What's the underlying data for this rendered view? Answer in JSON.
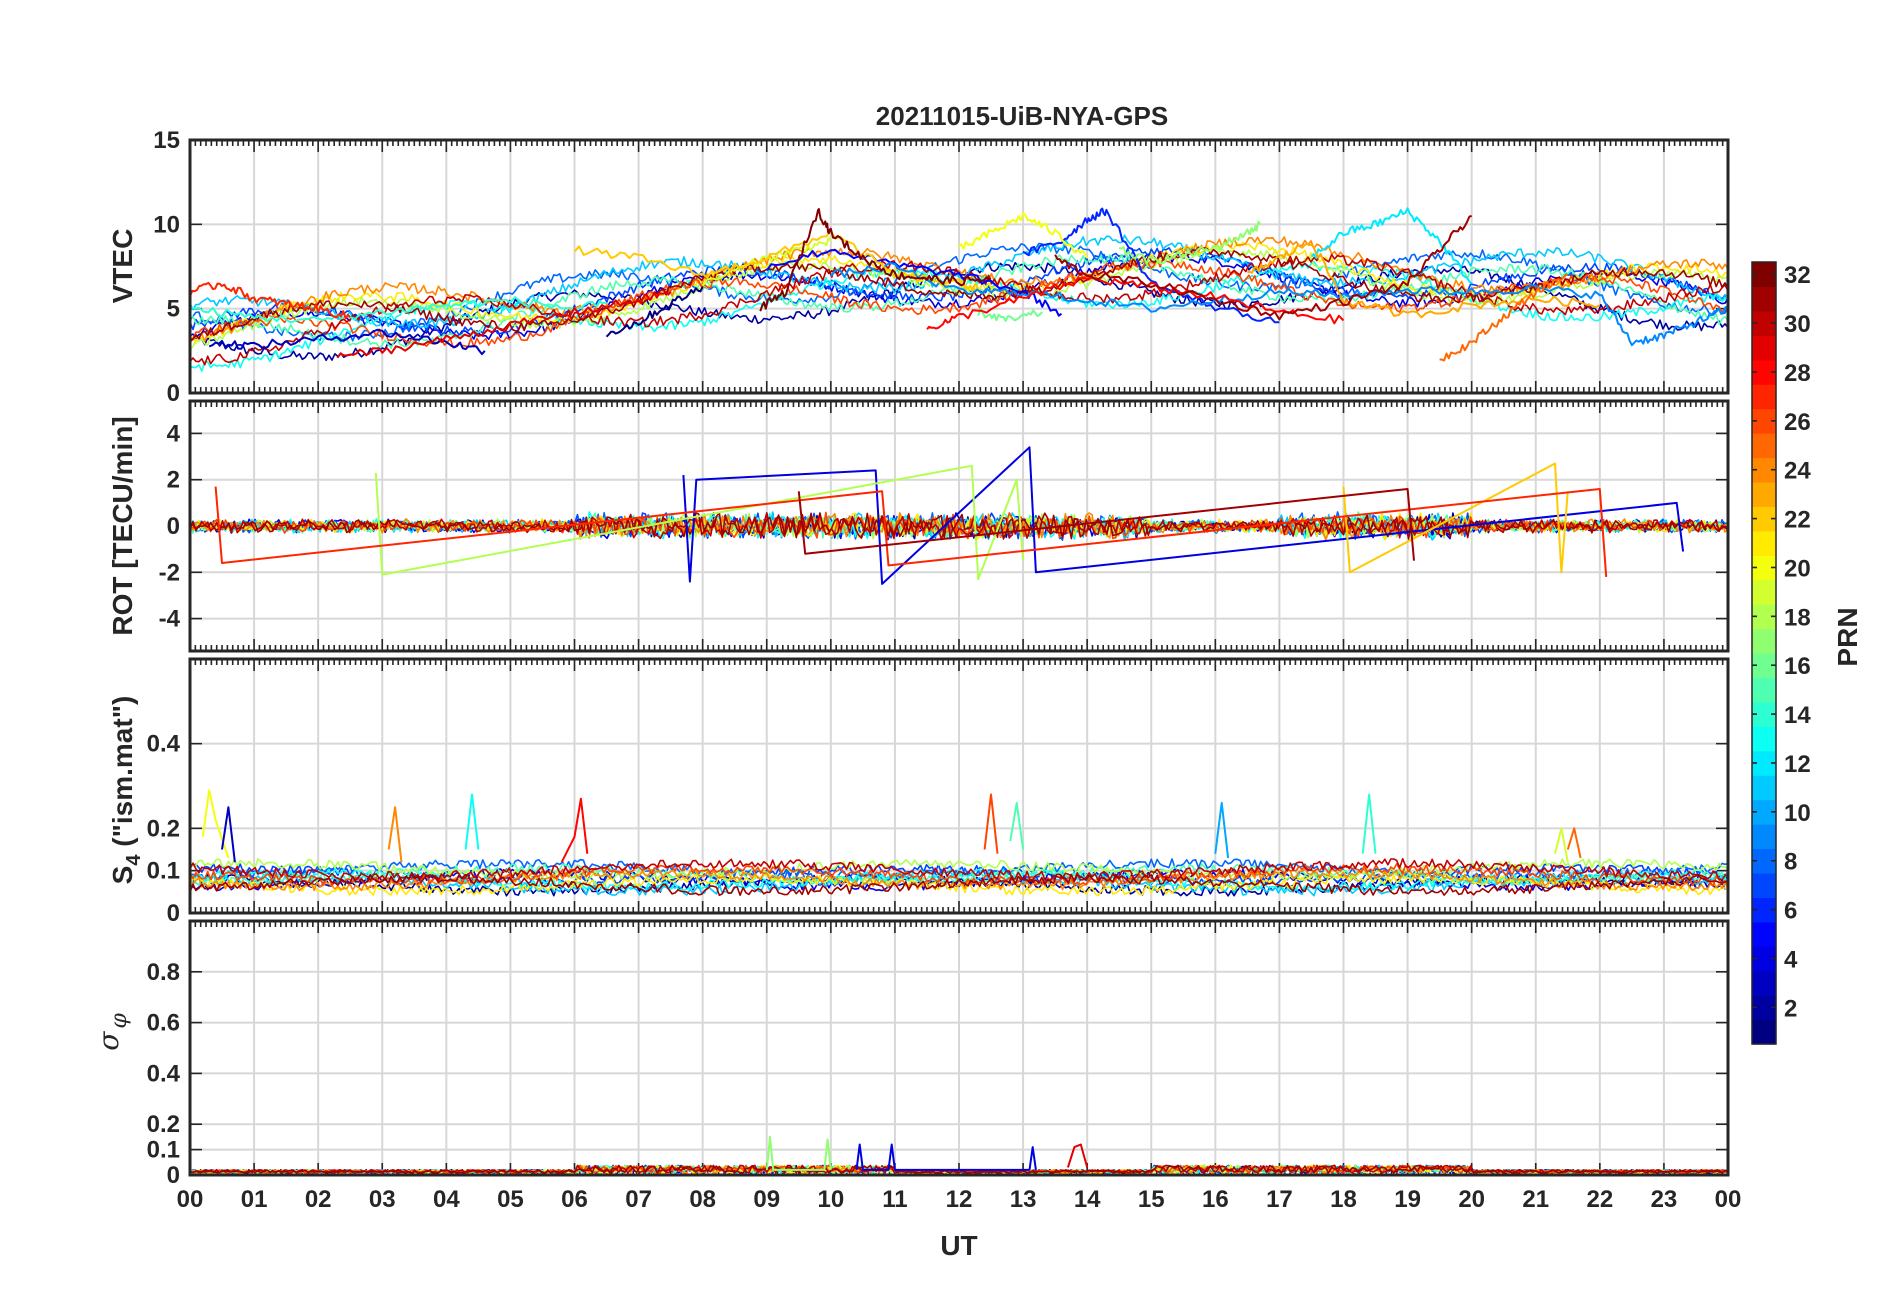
{
  "chart_data": [
    {
      "type": "line",
      "title": "20211015-UiB-NYA-GPS",
      "panel": "vtec",
      "ylabel": "VTEC",
      "xlabel": "",
      "ylim": [
        0,
        15
      ],
      "yticks": [
        0,
        5,
        10,
        15
      ],
      "ytick_labels": [
        "0",
        "5",
        "10",
        "15"
      ],
      "grid": true,
      "series": [
        {
          "name": "PRN 1",
          "prn": 1,
          "x": [
            6.5,
            7.0,
            7.5,
            8.0
          ],
          "values": [
            3.5,
            4.2,
            5.3,
            6.3
          ]
        },
        {
          "name": "PRN 3",
          "prn": 3,
          "x": [
            0.3,
            1.0,
            2.0,
            3.0,
            4.0,
            4.6
          ],
          "values": [
            3.0,
            2.8,
            3.2,
            3.6,
            3.0,
            2.5
          ]
        },
        {
          "name": "PRN 5",
          "prn": 5,
          "x": [
            9.0,
            10.0,
            11.0,
            12.0,
            13.0,
            13.6
          ],
          "values": [
            7.5,
            8.5,
            7.6,
            7.0,
            6.0,
            4.7
          ]
        },
        {
          "name": "PRN 6",
          "prn": 6,
          "x": [
            13.0,
            13.6,
            14.0,
            14.3,
            15.0,
            16.0,
            17.0
          ],
          "values": [
            8.2,
            9.0,
            10.3,
            10.8,
            6.5,
            5.1,
            4.2
          ]
        },
        {
          "name": "PRN 9",
          "prn": 9,
          "x": [
            10.0,
            11.0,
            12.0,
            13.0,
            14.0,
            15.0,
            16.0,
            17.0,
            18.0,
            19.0,
            20.0,
            21.0,
            22.0,
            22.5,
            23.0,
            23.5,
            24.0
          ],
          "values": [
            7.0,
            7.5,
            6.0,
            6.0,
            5.5,
            5.0,
            5.5,
            6.0,
            5.8,
            6.1,
            6.0,
            6.2,
            5.8,
            3.0,
            3.4,
            4.2,
            5.0
          ]
        },
        {
          "name": "PRN 12",
          "prn": 12,
          "x": [
            17.5,
            18.0,
            18.5,
            19.0,
            19.5,
            20.0
          ],
          "values": [
            8.0,
            9.5,
            10.0,
            10.8,
            9.0,
            6.5
          ]
        },
        {
          "name": "PRN 14",
          "prn": 14,
          "x": [
            0.0,
            1.0,
            2.0,
            3.0,
            4.0,
            5.0,
            6.0,
            6.5
          ],
          "values": [
            5.0,
            4.5,
            4.3,
            4.8,
            5.2,
            5.5,
            5.0,
            5.3
          ]
        },
        {
          "name": "PRN 16",
          "prn": 16,
          "x": [
            12.3,
            12.8,
            13.3
          ],
          "values": [
            4.8,
            4.3,
            4.8
          ]
        },
        {
          "name": "PRN 17",
          "prn": 17,
          "x": [
            14.5,
            15.0,
            15.5,
            16.0,
            16.5,
            16.7
          ],
          "values": [
            8.5,
            7.8,
            8.2,
            8.6,
            9.5,
            10.0
          ]
        },
        {
          "name": "PRN 19",
          "prn": 19,
          "x": [
            8.0,
            9.0,
            9.5,
            10.0
          ],
          "values": [
            6.5,
            8.0,
            8.5,
            9.0
          ]
        },
        {
          "name": "PRN 20",
          "prn": 20,
          "x": [
            12.0,
            12.5,
            13.0,
            13.5,
            14.0
          ],
          "values": [
            8.5,
            9.5,
            10.5,
            9.5,
            8.0
          ]
        },
        {
          "name": "PRN 22",
          "prn": 22,
          "x": [
            6.0,
            7.0,
            8.0,
            9.0,
            10.0,
            11.0,
            12.0,
            12.3
          ],
          "values": [
            8.5,
            8.0,
            7.0,
            8.0,
            9.5,
            7.0,
            6.5,
            6.2
          ]
        },
        {
          "name": "PRN 23",
          "prn": 23,
          "x": [
            16.5,
            17.0,
            17.5,
            18.0,
            19.0,
            20.0,
            21.0,
            22.0
          ],
          "values": [
            7.0,
            8.0,
            9.0,
            5.5,
            4.6,
            5.2,
            5.6,
            5.2
          ]
        },
        {
          "name": "PRN 25",
          "prn": 25,
          "x": [
            19.5,
            20.0,
            20.5,
            21.0,
            21.5
          ],
          "values": [
            2.0,
            3.0,
            4.5,
            6.0,
            7.0
          ]
        },
        {
          "name": "PRN 27",
          "prn": 27,
          "x": [
            0.0,
            0.5,
            1.0,
            1.5,
            2.0,
            2.5
          ],
          "values": [
            6.0,
            6.5,
            5.6,
            5.3,
            5.0,
            4.5
          ]
        },
        {
          "name": "PRN 28",
          "prn": 28,
          "x": [
            11.5,
            12.0,
            13.0,
            14.0,
            15.0,
            16.0,
            17.0,
            18.0
          ],
          "values": [
            3.8,
            4.5,
            5.6,
            6.8,
            6.3,
            5.7,
            4.8,
            4.3
          ]
        },
        {
          "name": "PRN 29",
          "prn": 29,
          "x": [
            2.3,
            3.0,
            4.0,
            5.0,
            6.0,
            7.0,
            7.5
          ],
          "values": [
            2.2,
            2.5,
            3.2,
            4.0,
            4.8,
            5.5,
            6.0
          ]
        },
        {
          "name": "PRN 31",
          "prn": 31,
          "x": [
            13.5,
            14.0,
            15.0,
            16.0,
            17.0,
            18.0,
            19.0,
            19.5,
            20.0
          ],
          "values": [
            8.0,
            7.0,
            6.5,
            5.5,
            4.6,
            5.4,
            6.5,
            8.5,
            10.5
          ]
        },
        {
          "name": "PRN 32",
          "prn": 32,
          "x": [
            8.9,
            9.3,
            9.8,
            10.0,
            10.5,
            11.0,
            11.5,
            12.0,
            12.5
          ],
          "values": [
            5.0,
            6.0,
            10.8,
            9.5,
            8.0,
            7.0,
            6.8,
            6.6,
            6.8
          ]
        }
      ]
    },
    {
      "type": "line",
      "panel": "rot",
      "ylabel": "ROT [TECU/min]",
      "xlabel": "",
      "ylim": [
        -5.4,
        5.4
      ],
      "yticks": [
        -4,
        -2,
        0,
        2,
        4
      ],
      "ytick_labels": [
        "-4",
        "-2",
        "0",
        "2",
        "4"
      ],
      "grid": true,
      "series": [
        {
          "name": "ROT PRN 4",
          "prn": 4,
          "x": [
            7.7,
            7.8,
            7.9,
            10.7,
            10.8,
            13.1,
            13.2,
            23.2,
            23.3
          ],
          "values": [
            2.2,
            -2.4,
            2.0,
            2.4,
            -2.5,
            3.4,
            -2.0,
            1.0,
            -1.1
          ]
        },
        {
          "name": "ROT PRN 18",
          "prn": 18,
          "x": [
            2.9,
            3.0,
            12.2,
            12.3,
            12.9,
            13.0
          ],
          "values": [
            2.3,
            -2.1,
            2.6,
            -2.3,
            2.0,
            -1.5
          ]
        },
        {
          "name": "ROT PRN 22",
          "prn": 22,
          "x": [
            18.0,
            18.1,
            21.3,
            21.4,
            21.5
          ],
          "values": [
            1.7,
            -2.0,
            2.7,
            -2.0,
            1.5
          ]
        },
        {
          "name": "ROT PRN 27",
          "prn": 27,
          "x": [
            0.4,
            0.5,
            10.8,
            10.9,
            22.0,
            22.1
          ],
          "values": [
            1.7,
            -1.6,
            1.5,
            -1.7,
            1.6,
            -2.2
          ]
        },
        {
          "name": "ROT PRN 31",
          "prn": 31,
          "x": [
            9.5,
            9.6,
            19.0,
            19.1
          ],
          "values": [
            1.5,
            -1.2,
            1.6,
            -1.5
          ]
        }
      ]
    },
    {
      "type": "line",
      "panel": "s4",
      "ylabel": "S4 (\"ism.mat\")",
      "xlabel": "",
      "ylim": [
        0,
        0.6
      ],
      "yticks": [
        0,
        0.1,
        0.2,
        0.4
      ],
      "ytick_labels": [
        "0",
        "0.1",
        "0.2",
        "0.4"
      ],
      "grid": true,
      "series": [
        {
          "name": "S4 PRN 20",
          "prn": 20,
          "x": [
            0.2,
            0.3,
            0.4,
            0.6
          ],
          "values": [
            0.18,
            0.29,
            0.22,
            0.13
          ]
        },
        {
          "name": "S4 PRN 3",
          "prn": 3,
          "x": [
            0.5,
            0.6,
            0.7
          ],
          "values": [
            0.15,
            0.25,
            0.12
          ]
        },
        {
          "name": "S4 PRN 24",
          "prn": 24,
          "x": [
            3.1,
            3.2,
            3.3
          ],
          "values": [
            0.15,
            0.25,
            0.12
          ]
        },
        {
          "name": "S4 PRN 13",
          "prn": 13,
          "x": [
            4.3,
            4.4,
            4.5
          ],
          "values": [
            0.15,
            0.28,
            0.15
          ]
        },
        {
          "name": "S4 PRN 28",
          "prn": 28,
          "x": [
            5.8,
            6.0,
            6.1,
            6.2
          ],
          "values": [
            0.12,
            0.18,
            0.27,
            0.14
          ]
        },
        {
          "name": "S4 PRN 26",
          "prn": 26,
          "x": [
            12.4,
            12.5,
            12.6
          ],
          "values": [
            0.15,
            0.28,
            0.14
          ]
        },
        {
          "name": "S4 PRN 15",
          "prn": 15,
          "x": [
            12.8,
            12.9,
            13.0
          ],
          "values": [
            0.17,
            0.26,
            0.15
          ]
        },
        {
          "name": "S4 PRN 10",
          "prn": 10,
          "x": [
            16.0,
            16.1,
            16.2
          ],
          "values": [
            0.14,
            0.26,
            0.13
          ]
        },
        {
          "name": "S4 PRN 14",
          "prn": 14,
          "x": [
            18.3,
            18.4,
            18.5
          ],
          "values": [
            0.14,
            0.28,
            0.14
          ]
        },
        {
          "name": "S4 PRN 19",
          "prn": 19,
          "x": [
            21.3,
            21.4,
            21.5
          ],
          "values": [
            0.14,
            0.2,
            0.12
          ]
        },
        {
          "name": "S4 PRN 25",
          "prn": 25,
          "x": [
            21.5,
            21.6,
            21.7
          ],
          "values": [
            0.15,
            0.2,
            0.13
          ]
        }
      ]
    },
    {
      "type": "line",
      "panel": "sigma_phi",
      "ylabel": "σ φ",
      "xlabel": "UT",
      "ylim": [
        0,
        1.0
      ],
      "yticks": [
        0,
        0.1,
        0.2,
        0.4,
        0.6,
        0.8
      ],
      "ytick_labels": [
        "0",
        "0.1",
        "0.2",
        "0.4",
        "0.6",
        "0.8"
      ],
      "xticks": [
        0,
        1,
        2,
        3,
        4,
        5,
        6,
        7,
        8,
        9,
        10,
        11,
        12,
        13,
        14,
        15,
        16,
        17,
        18,
        19,
        20,
        21,
        22,
        23,
        24
      ],
      "xtick_labels": [
        "00",
        "01",
        "02",
        "03",
        "04",
        "05",
        "06",
        "07",
        "08",
        "09",
        "10",
        "11",
        "12",
        "13",
        "14",
        "15",
        "16",
        "17",
        "18",
        "19",
        "20",
        "21",
        "22",
        "23",
        "00"
      ],
      "grid": true,
      "series": [
        {
          "name": "σφ PRN 17",
          "prn": 17,
          "x": [
            9.0,
            9.05,
            9.1,
            9.9,
            9.95,
            10.0
          ],
          "values": [
            0.02,
            0.15,
            0.02,
            0.02,
            0.14,
            0.02
          ]
        },
        {
          "name": "σφ PRN 4",
          "prn": 4,
          "x": [
            10.4,
            10.45,
            10.5,
            10.9,
            10.95,
            11.0,
            13.1,
            13.15,
            13.2
          ],
          "values": [
            0.02,
            0.12,
            0.02,
            0.02,
            0.12,
            0.02,
            0.02,
            0.11,
            0.02
          ]
        },
        {
          "name": "σφ PRN 29",
          "prn": 29,
          "x": [
            13.7,
            13.8,
            13.9,
            14.0
          ],
          "values": [
            0.03,
            0.11,
            0.12,
            0.03
          ]
        }
      ]
    }
  ],
  "colorbar": {
    "label": "PRN",
    "range": [
      1,
      32
    ],
    "ticks": [
      2,
      4,
      6,
      8,
      10,
      12,
      14,
      16,
      18,
      20,
      22,
      24,
      26,
      28,
      30,
      32
    ],
    "tick_labels": [
      "2",
      "4",
      "6",
      "8",
      "10",
      "12",
      "14",
      "16",
      "18",
      "20",
      "22",
      "24",
      "26",
      "28",
      "30",
      "32"
    ]
  },
  "labels": {
    "title": "20211015-UiB-NYA-GPS",
    "vtec": "VTEC",
    "rot": "ROT [TECU/min]",
    "s4_main": "S",
    "s4_sub": "4",
    "s4_rest": " (\"ism.mat\")",
    "sigma_main": "σ",
    "sigma_sub": "φ",
    "xlabel": "UT",
    "cbar": "PRN"
  }
}
